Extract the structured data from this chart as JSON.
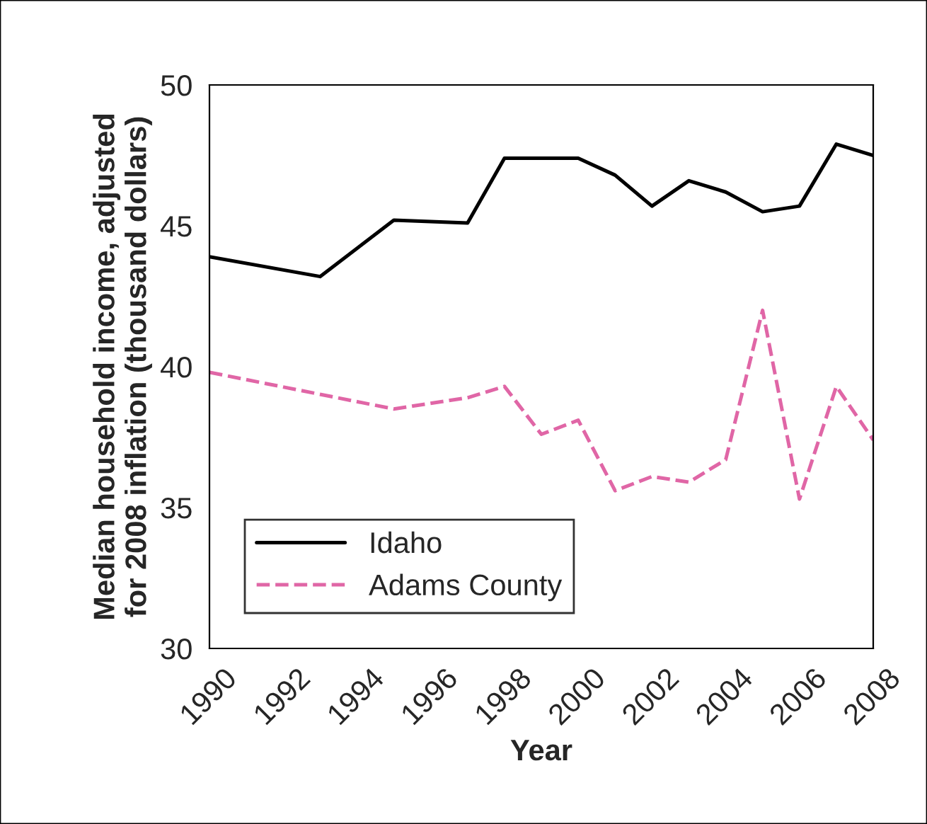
{
  "chart_data": {
    "type": "line",
    "xlabel": "Year",
    "ylabel": "Median household income, adjusted\nfor 2008 inflation (thousand dollars)",
    "xlim": [
      1990,
      2008
    ],
    "xticks": [
      1990,
      1992,
      1994,
      1996,
      1998,
      2000,
      2002,
      2004,
      2006,
      2008
    ],
    "ylim": [
      30,
      50
    ],
    "yticks": [
      30,
      35,
      40,
      45,
      50
    ],
    "grid": false,
    "legend": "bottom left",
    "series": [
      {
        "name": "Idaho",
        "color": "#000000",
        "line_style": "solid",
        "x": [
          1990,
          1993,
          1995,
          1997,
          1998,
          1999,
          2000,
          2001,
          2002,
          2003,
          2004,
          2005,
          2006,
          2007,
          2008
        ],
        "values": [
          43.9,
          43.2,
          45.2,
          45.1,
          47.4,
          47.4,
          47.4,
          46.8,
          45.7,
          46.6,
          46.2,
          45.5,
          45.7,
          47.9,
          47.5
        ]
      },
      {
        "name": "Adams County",
        "color": "#e066a6",
        "line_style": "dashed",
        "x": [
          1990,
          1995,
          1997,
          1998,
          1999,
          2000,
          2001,
          2002,
          2003,
          2004,
          2005,
          2006,
          2007,
          2008
        ],
        "values": [
          39.8,
          38.5,
          38.9,
          39.3,
          37.6,
          38.1,
          35.6,
          36.1,
          35.9,
          36.7,
          42.0,
          35.3,
          39.3,
          37.4
        ]
      }
    ]
  }
}
